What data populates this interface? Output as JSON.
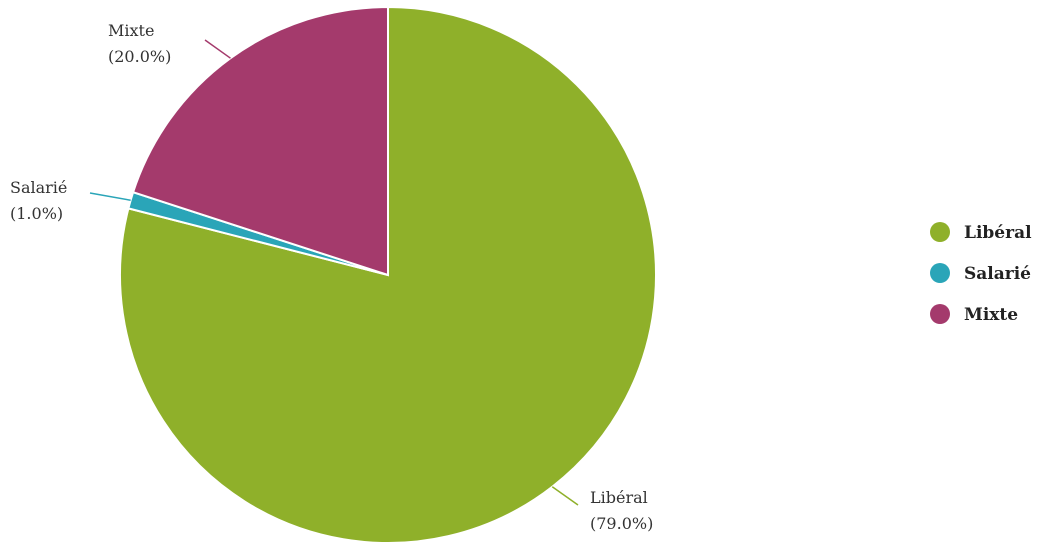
{
  "chart_data": {
    "type": "pie",
    "title": "",
    "slices": [
      {
        "name": "Libéral",
        "value": 79.0,
        "label": "(79.0%)",
        "color": "#8fb02a"
      },
      {
        "name": "Salarié",
        "value": 1.0,
        "label": "(1.0%)",
        "color": "#2aa5b8"
      },
      {
        "name": "Mixte",
        "value": 20.0,
        "label": "(20.0%)",
        "color": "#a43a6c"
      }
    ],
    "legend": {
      "position": "right",
      "items": [
        "Libéral",
        "Salarié",
        "Mixte"
      ]
    }
  }
}
